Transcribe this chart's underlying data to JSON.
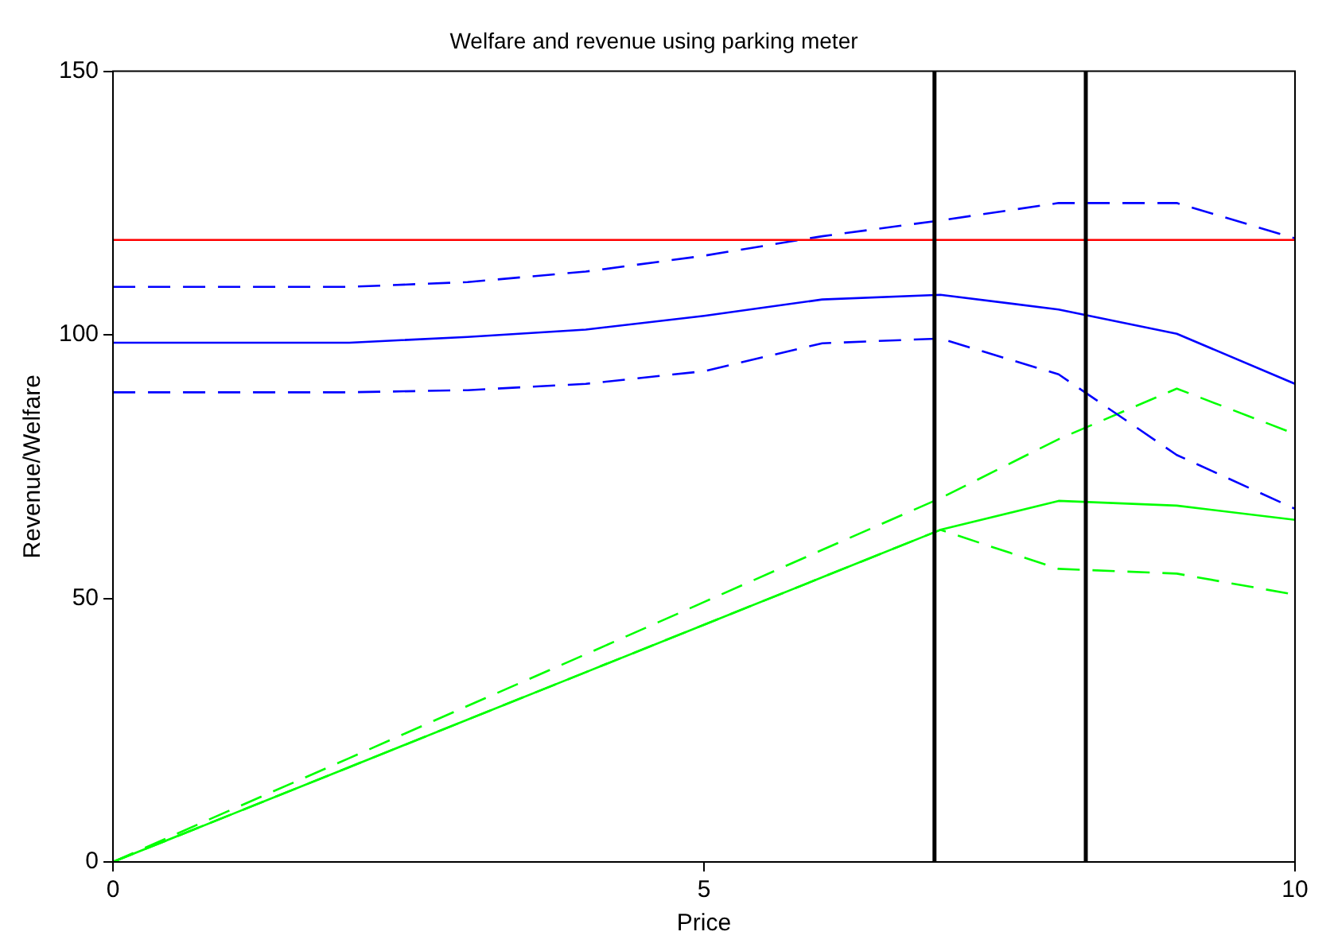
{
  "chart_data": {
    "type": "line",
    "title": "Welfare and revenue using parking meter",
    "xlabel": "Price",
    "ylabel": "Revenue/Welfare",
    "x": [
      0,
      1,
      2,
      3,
      4,
      5,
      6,
      7,
      8,
      9,
      10
    ],
    "series": [
      {
        "color": "#ff0000",
        "values": [
          118,
          118,
          118,
          118,
          118,
          118,
          118,
          118,
          118,
          118,
          118
        ],
        "line_style": "solid"
      },
      {
        "color": "#0000ff",
        "values": [
          109.1,
          109.1,
          109.1,
          110,
          112,
          115,
          118.7,
          121.7,
          125,
          125,
          118.3
        ],
        "line_style": "dashed"
      },
      {
        "color": "#0000ff",
        "values": [
          98.5,
          98.5,
          98.5,
          99.6,
          101,
          103.6,
          106.7,
          107.6,
          104.8,
          100.2,
          90.7
        ],
        "line_style": "solid"
      },
      {
        "color": "#0000ff",
        "values": [
          89.1,
          89.1,
          89.1,
          89.5,
          90.7,
          93.1,
          98.4,
          99.3,
          92.5,
          77.2,
          67
        ],
        "line_style": "dashed"
      },
      {
        "color": "#00ff00",
        "values": [
          0,
          9.9,
          19.7,
          29.6,
          39.4,
          49.3,
          59.2,
          69,
          80.2,
          89.8,
          81.2
        ],
        "line_style": "dashed"
      },
      {
        "color": "#00ff00",
        "values": [
          0,
          9,
          18,
          27,
          36,
          45,
          54,
          63,
          68.5,
          67.6,
          64.9
        ],
        "line_style": "solid"
      },
      {
        "color": "#00ff00",
        "values": [
          0,
          9,
          18,
          27,
          36,
          45,
          54,
          63,
          55.6,
          54.7,
          50.7
        ],
        "line_style": "dashed"
      }
    ],
    "ref_lines": [
      {
        "axis": "x",
        "value": 6.95,
        "color": "#000000"
      },
      {
        "axis": "x",
        "value": 8.23,
        "color": "#000000"
      }
    ],
    "xlim": [
      0,
      10
    ],
    "xticks": [
      0,
      5,
      10
    ],
    "ylim": [
      0,
      150
    ],
    "yticks": [
      0,
      50,
      100,
      150
    ],
    "grid": false,
    "legend": false,
    "marker": "none"
  }
}
